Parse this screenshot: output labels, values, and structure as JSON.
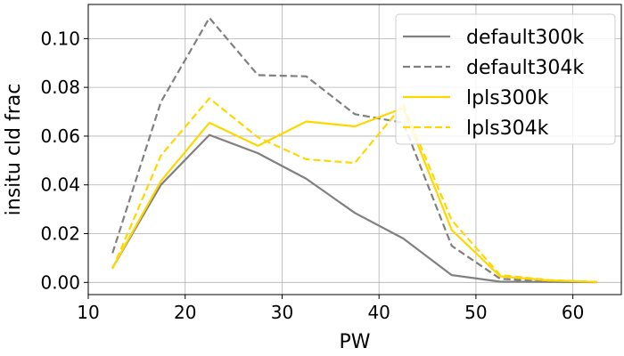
{
  "chart_data": {
    "type": "line",
    "xlabel": "PW",
    "ylabel": "insitu cld frac",
    "xlim": [
      10,
      65
    ],
    "ylim": [
      -0.005,
      0.114
    ],
    "xticks": [
      10,
      20,
      30,
      40,
      50,
      60
    ],
    "yticks": [
      0.0,
      0.02,
      0.04,
      0.06,
      0.08,
      0.1
    ],
    "ytick_labels": [
      "0.00",
      "0.02",
      "0.04",
      "0.06",
      "0.08",
      "0.10"
    ],
    "grid": true,
    "legend_position": "top-right",
    "x": [
      12.5,
      17.5,
      22.5,
      27.5,
      32.5,
      37.5,
      42.5,
      47.5,
      52.5,
      57.5,
      62.5
    ],
    "series": [
      {
        "name": "default300k",
        "color": "#808080",
        "dash": "solid",
        "values": [
          0.006,
          0.04,
          0.0605,
          0.053,
          0.0425,
          0.0285,
          0.018,
          0.003,
          0.0003,
          0.0002,
          0.0001
        ]
      },
      {
        "name": "default304k",
        "color": "#808080",
        "dash": "dashed",
        "values": [
          0.012,
          0.074,
          0.1085,
          0.085,
          0.0845,
          0.069,
          0.0655,
          0.015,
          0.0015,
          0.0003,
          0.0001
        ]
      },
      {
        "name": "lpls300k",
        "color": "#FFD700",
        "dash": "solid",
        "values": [
          0.006,
          0.0415,
          0.0655,
          0.056,
          0.066,
          0.064,
          0.0715,
          0.0215,
          0.0025,
          0.0008,
          0.0002
        ]
      },
      {
        "name": "lpls304k",
        "color": "#FFD700",
        "dash": "dashed",
        "values": [
          0.0055,
          0.052,
          0.0755,
          0.0595,
          0.0505,
          0.049,
          0.073,
          0.0255,
          0.003,
          0.001,
          0.0002
        ]
      }
    ]
  }
}
